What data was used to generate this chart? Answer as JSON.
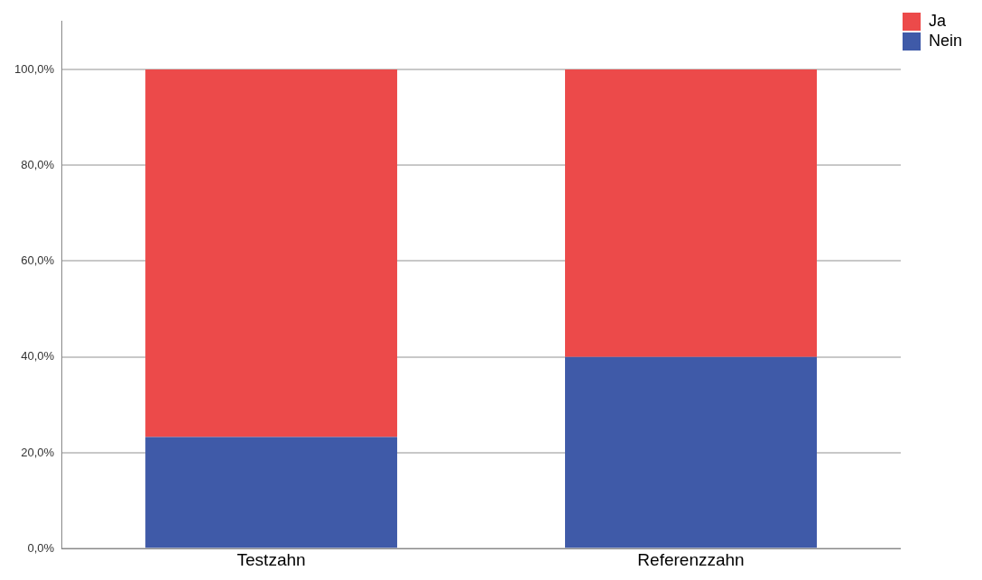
{
  "chart_data": {
    "type": "bar",
    "stacked": true,
    "categories": [
      "Testzahn",
      "Referenzzahn"
    ],
    "series": [
      {
        "name": "Nein",
        "color": "#3f5aa8",
        "values": [
          23.3,
          40
        ]
      },
      {
        "name": "Ja",
        "color": "#ec4a4a",
        "values": [
          76.7,
          60
        ]
      }
    ],
    "ylim": [
      0,
      110
    ],
    "yticks": [
      {
        "value": 0,
        "label": "0,0%"
      },
      {
        "value": 20,
        "label": "20,0%"
      },
      {
        "value": 40,
        "label": "40,0%"
      },
      {
        "value": 60,
        "label": "60,0%"
      },
      {
        "value": 80,
        "label": "80,0%"
      },
      {
        "value": 100,
        "label": "100,0%"
      }
    ],
    "grid": "y",
    "legend": "top right"
  }
}
